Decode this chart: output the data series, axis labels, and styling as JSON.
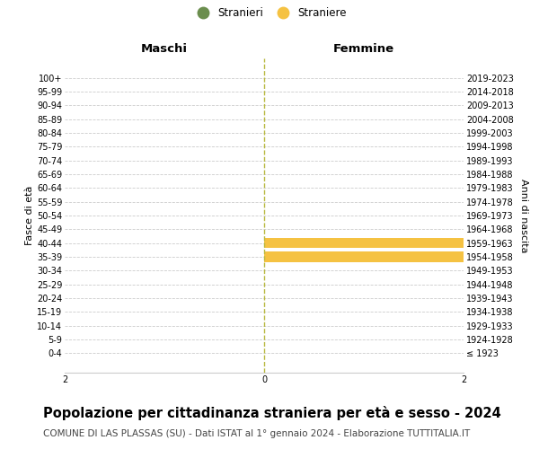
{
  "age_groups": [
    "100+",
    "95-99",
    "90-94",
    "85-89",
    "80-84",
    "75-79",
    "70-74",
    "65-69",
    "60-64",
    "55-59",
    "50-54",
    "45-49",
    "40-44",
    "35-39",
    "30-34",
    "25-29",
    "20-24",
    "15-19",
    "10-14",
    "5-9",
    "0-4"
  ],
  "birth_years": [
    "≤ 1923",
    "1924-1928",
    "1929-1933",
    "1934-1938",
    "1939-1943",
    "1944-1948",
    "1949-1953",
    "1954-1958",
    "1959-1963",
    "1964-1968",
    "1969-1973",
    "1974-1978",
    "1979-1983",
    "1984-1988",
    "1989-1993",
    "1994-1998",
    "1999-2003",
    "2004-2008",
    "2009-2013",
    "2014-2018",
    "2019-2023"
  ],
  "males": [
    0,
    0,
    0,
    0,
    0,
    0,
    0,
    0,
    0,
    0,
    0,
    0,
    0,
    0,
    0,
    0,
    0,
    0,
    0,
    0,
    0
  ],
  "females": [
    0,
    0,
    0,
    0,
    0,
    0,
    0,
    0,
    0,
    0,
    0,
    0,
    2,
    2,
    0,
    0,
    0,
    0,
    0,
    0,
    0
  ],
  "male_color": "#6b8e4e",
  "female_color": "#f5c242",
  "male_legend": "Stranieri",
  "female_legend": "Straniere",
  "xlim": 2,
  "title": "Popolazione per cittadinanza straniera per età e sesso - 2024",
  "subtitle": "COMUNE DI LAS PLASSAS (SU) - Dati ISTAT al 1° gennaio 2024 - Elaborazione TUTTITALIA.IT",
  "ylabel_left": "Fasce di età",
  "ylabel_right": "Anni di nascita",
  "header_left": "Maschi",
  "header_right": "Femmine",
  "background_color": "#ffffff",
  "grid_color": "#cccccc",
  "title_fontsize": 10.5,
  "subtitle_fontsize": 7.5,
  "axis_label_fontsize": 8,
  "tick_fontsize": 7,
  "header_fontsize": 9.5
}
